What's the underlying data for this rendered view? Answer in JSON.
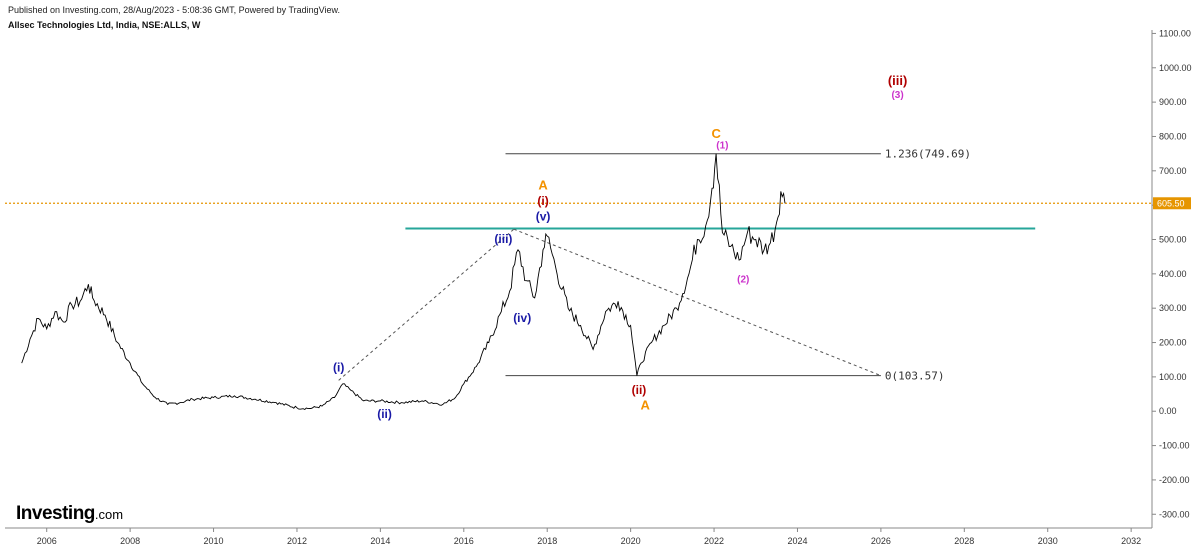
{
  "header": {
    "published": "Published on Investing.com, 28/Aug/2023 - 5:08:36 GMT, Powered by TradingView.",
    "symbol": "Allsec Technologies Ltd, India, NSE:ALLS, W"
  },
  "logo": {
    "main": "Investing",
    "suffix": ".com"
  },
  "colors": {
    "price_line": "#000000",
    "current_price": "#e69500",
    "support": "#26a69a",
    "wave_blue": "#1a1aa6",
    "wave_red": "#b00000",
    "wave_orange": "#f39200",
    "wave_magenta": "#cc33cc",
    "fib_line": "#444444"
  },
  "chart_data": {
    "type": "line",
    "interval": "W",
    "x_range": [
      2005.0,
      2032.5
    ],
    "ylim": [
      -340,
      1110
    ],
    "x_ticks": [
      "2006",
      "2008",
      "2010",
      "2012",
      "2014",
      "2016",
      "2018",
      "2020",
      "2022",
      "2024",
      "2026",
      "2028",
      "2030",
      "2032"
    ],
    "x_tick_values": [
      2006,
      2008,
      2010,
      2012,
      2014,
      2016,
      2018,
      2020,
      2022,
      2024,
      2026,
      2028,
      2030,
      2032
    ],
    "y_ticks": [
      "1100.00",
      "1000.00",
      "900.00",
      "800.00",
      "700.00",
      "600.00",
      "500.00",
      "400.00",
      "300.00",
      "200.00",
      "100.00",
      "0.00",
      "-100.00",
      "-200.00",
      "-300.00"
    ],
    "y_tick_values": [
      1100,
      1000,
      900,
      800,
      700,
      600,
      500,
      400,
      300,
      200,
      100,
      0,
      -100,
      -200,
      -300
    ],
    "current_price": {
      "value": 605.5,
      "label": "605.50"
    },
    "series": [
      {
        "x": [
          2005.4,
          2005.6,
          2005.8,
          2006.0,
          2006.2,
          2006.4,
          2006.6,
          2006.8,
          2007.0,
          2007.1,
          2007.4,
          2007.7,
          2008.0,
          2008.3,
          2008.6,
          2008.9,
          2009.2,
          2009.5,
          2010.0,
          2010.5,
          2011.0,
          2011.5,
          2012.0,
          2012.3,
          2012.6,
          2012.9,
          2013.1,
          2013.3,
          2013.6,
          2014.0,
          2014.5,
          2015.0,
          2015.5,
          2015.8,
          2016.0,
          2016.3,
          2016.6,
          2016.9,
          2017.1,
          2017.3,
          2017.5,
          2017.7,
          2017.9,
          2018.0,
          2018.2,
          2018.5,
          2018.8,
          2019.1,
          2019.4,
          2019.7,
          2020.0,
          2020.15,
          2020.25,
          2020.5,
          2020.8,
          2021.1,
          2021.4,
          2021.6,
          2021.8,
          2021.95,
          2022.05,
          2022.2,
          2022.4,
          2022.6,
          2022.8,
          2023.0,
          2023.2,
          2023.35,
          2023.5,
          2023.6,
          2023.7
        ],
        "y": [
          140,
          210,
          270,
          240,
          290,
          260,
          310,
          320,
          370,
          330,
          280,
          200,
          140,
          80,
          40,
          20,
          25,
          35,
          40,
          45,
          35,
          25,
          10,
          8,
          15,
          40,
          80,
          60,
          30,
          30,
          25,
          30,
          20,
          40,
          80,
          130,
          200,
          290,
          350,
          470,
          380,
          330,
          470,
          510,
          420,
          300,
          250,
          180,
          290,
          320,
          250,
          103.57,
          140,
          200,
          250,
          300,
          400,
          500,
          540,
          649,
          749.69,
          520,
          480,
          440,
          520,
          500,
          470,
          490,
          550,
          640,
          605.5
        ]
      }
    ],
    "fib_levels": [
      {
        "level": "1.236",
        "value": 749.69,
        "label": "1.236(749.69)",
        "x_start": 2017.0,
        "x_end": 2026.0
      },
      {
        "level": "0",
        "value": 103.57,
        "label": "0(103.57)",
        "x_start": 2017.0,
        "x_end": 2026.0
      }
    ],
    "support_line": {
      "value": 532,
      "x_start": 2014.6,
      "x_end": 2029.7
    },
    "trend_lines": [
      {
        "x": [
          2013.0,
          2017.2
        ],
        "y": [
          90,
          530
        ]
      },
      {
        "x": [
          2017.2,
          2026.0
        ],
        "y": [
          530,
          103.57
        ]
      }
    ],
    "annotations": [
      {
        "text": "(i)",
        "x": 2013.0,
        "y": 115,
        "color": "wave_blue",
        "size": 12
      },
      {
        "text": "(ii)",
        "x": 2014.1,
        "y": -20,
        "color": "wave_blue",
        "size": 12
      },
      {
        "text": "(iii)",
        "x": 2016.95,
        "y": 490,
        "color": "wave_blue",
        "size": 12
      },
      {
        "text": "(iv)",
        "x": 2017.4,
        "y": 260,
        "color": "wave_blue",
        "size": 12
      },
      {
        "text": "(v)",
        "x": 2017.9,
        "y": 555,
        "color": "wave_blue",
        "size": 12
      },
      {
        "text": "(i)",
        "x": 2017.9,
        "y": 600,
        "color": "wave_red",
        "size": 12
      },
      {
        "text": "A",
        "x": 2017.9,
        "y": 645,
        "color": "wave_orange",
        "size": 13
      },
      {
        "text": "(ii)",
        "x": 2020.2,
        "y": 50,
        "color": "wave_red",
        "size": 12
      },
      {
        "text": "A",
        "x": 2020.35,
        "y": 5,
        "color": "wave_orange",
        "size": 13
      },
      {
        "text": "C",
        "x": 2022.05,
        "y": 795,
        "color": "wave_orange",
        "size": 13
      },
      {
        "text": "(1)",
        "x": 2022.2,
        "y": 765,
        "color": "wave_magenta",
        "size": 10
      },
      {
        "text": "(2)",
        "x": 2022.7,
        "y": 375,
        "color": "wave_magenta",
        "size": 10
      },
      {
        "text": "(iii)",
        "x": 2026.4,
        "y": 950,
        "color": "wave_red",
        "size": 13
      },
      {
        "text": "(3)",
        "x": 2026.4,
        "y": 912,
        "color": "wave_magenta",
        "size": 10
      }
    ]
  }
}
